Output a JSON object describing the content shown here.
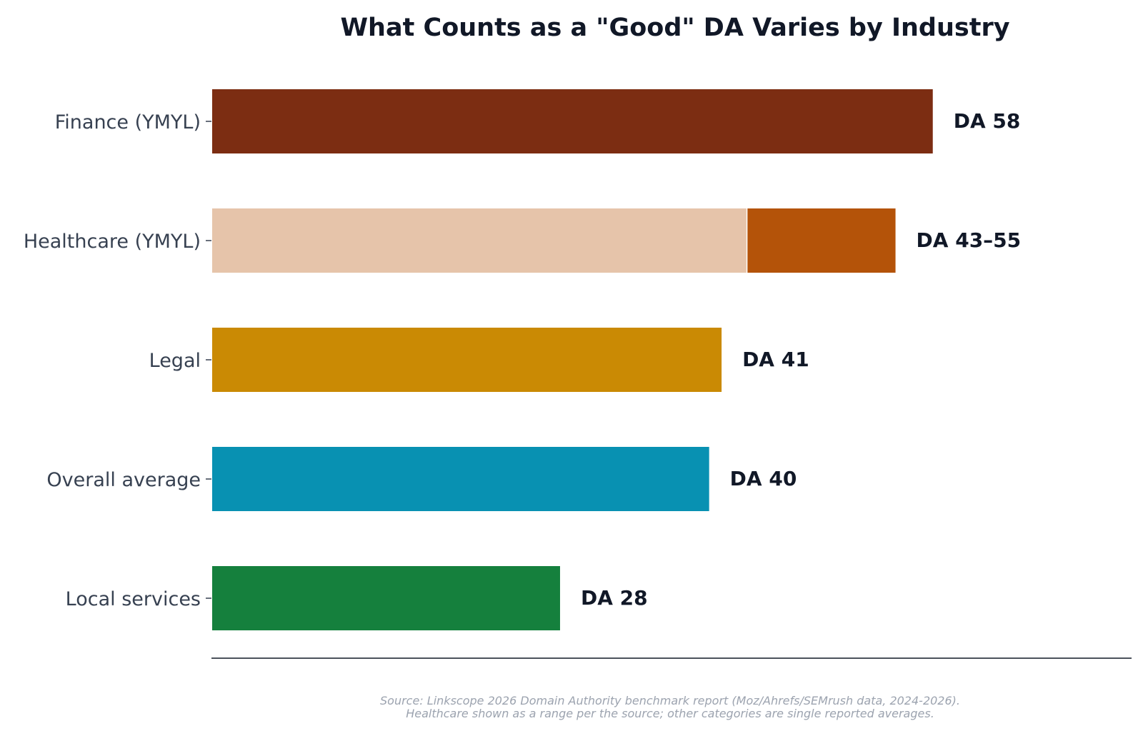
{
  "chart_data": {
    "type": "bar",
    "orientation": "horizontal",
    "title": "What Counts as a \"Good\" DA Varies by Industry",
    "xlabel": "",
    "ylabel": "",
    "xlim": [
      0,
      74
    ],
    "grid": false,
    "categories": [
      "Finance (YMYL)",
      "Healthcare (YMYL)",
      "Legal",
      "Overall average",
      "Local services"
    ],
    "bars": [
      {
        "category": "Finance (YMYL)",
        "value": 58,
        "label": "DA 58",
        "color": "#7c2d12"
      },
      {
        "category": "Healthcare (YMYL)",
        "range": [
          43,
          55
        ],
        "label": "DA 43–55",
        "color": "#b45309",
        "range_base_color": "#e6c4aa"
      },
      {
        "category": "Legal",
        "value": 41,
        "label": "DA 41",
        "color": "#ca8a04"
      },
      {
        "category": "Overall average",
        "value": 40,
        "label": "DA 40",
        "color": "#0891b2"
      },
      {
        "category": "Local services",
        "value": 28,
        "label": "DA 28",
        "color": "#15803d"
      }
    ],
    "source_lines": [
      "Source: Linkscope 2026 Domain Authority benchmark report (Moz/Ahrefs/SEMrush data, 2024-2026).",
      "Healthcare shown as a range per the source; other categories are single reported averages."
    ]
  }
}
